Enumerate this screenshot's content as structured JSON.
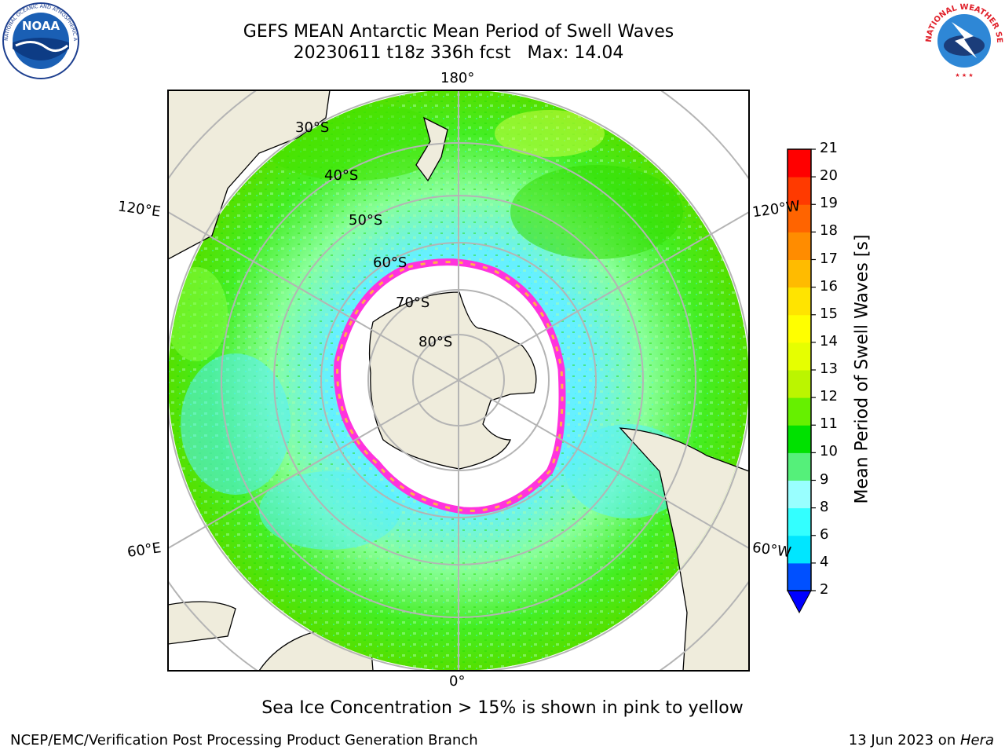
{
  "header": {
    "title_line1": "GEFS MEAN Antarctic Mean Period of Swell Waves",
    "title_line2": "20230611 t18z 336h fcst   Max: 14.04"
  },
  "logos": {
    "left": {
      "text": "NOAA",
      "ring_text": "NATIONAL OCEANIC AND ATMOSPHERIC ADMINISTRATION",
      "icon": "noaa-logo-icon"
    },
    "right": {
      "ring_text": "NATIONAL WEATHER SERVICE",
      "icon": "nws-logo-icon"
    }
  },
  "map": {
    "projection": "south-polar-stereographic",
    "longitude_labels": {
      "top": "180°",
      "bottom": "0°",
      "upper_left": "120°E",
      "upper_right": "120°W",
      "lower_left": "60°E",
      "lower_right": "60°W"
    },
    "latitude_labels": [
      "30°S",
      "40°S",
      "50°S",
      "60°S",
      "70°S",
      "80°S"
    ],
    "colors": {
      "land": "#efecdc",
      "ocean_low": "#55f0ff",
      "ocean_mid": "#88ff88",
      "ocean_high": "#22dd00",
      "sea_ice": "#ffffff",
      "ice_edge": "#ff33dd",
      "grid": "#b4b4b4"
    }
  },
  "colorbar": {
    "label": "Mean Period of Swell Waves [s]",
    "ticks": [
      "2",
      "4",
      "6",
      "8",
      "9",
      "10",
      "11",
      "12",
      "13",
      "14",
      "15",
      "16",
      "17",
      "18",
      "19",
      "20",
      "21"
    ],
    "colors": [
      "#0050ff",
      "#00e6ff",
      "#33ffff",
      "#99ffff",
      "#55f07a",
      "#00e100",
      "#66f000",
      "#bbf500",
      "#e6ff00",
      "#ffff00",
      "#ffe400",
      "#ffbb00",
      "#ff8c00",
      "#ff6400",
      "#ff3a00",
      "#ff0000"
    ],
    "extend_color": "#0000ff"
  },
  "notes": {
    "ice": "Sea Ice Concentration > 15% is shown in pink to yellow"
  },
  "footer": {
    "left": "NCEP/EMC/Verification Post Processing Product Generation Branch",
    "date": "13 Jun 2023 on ",
    "machine": "Hera"
  }
}
